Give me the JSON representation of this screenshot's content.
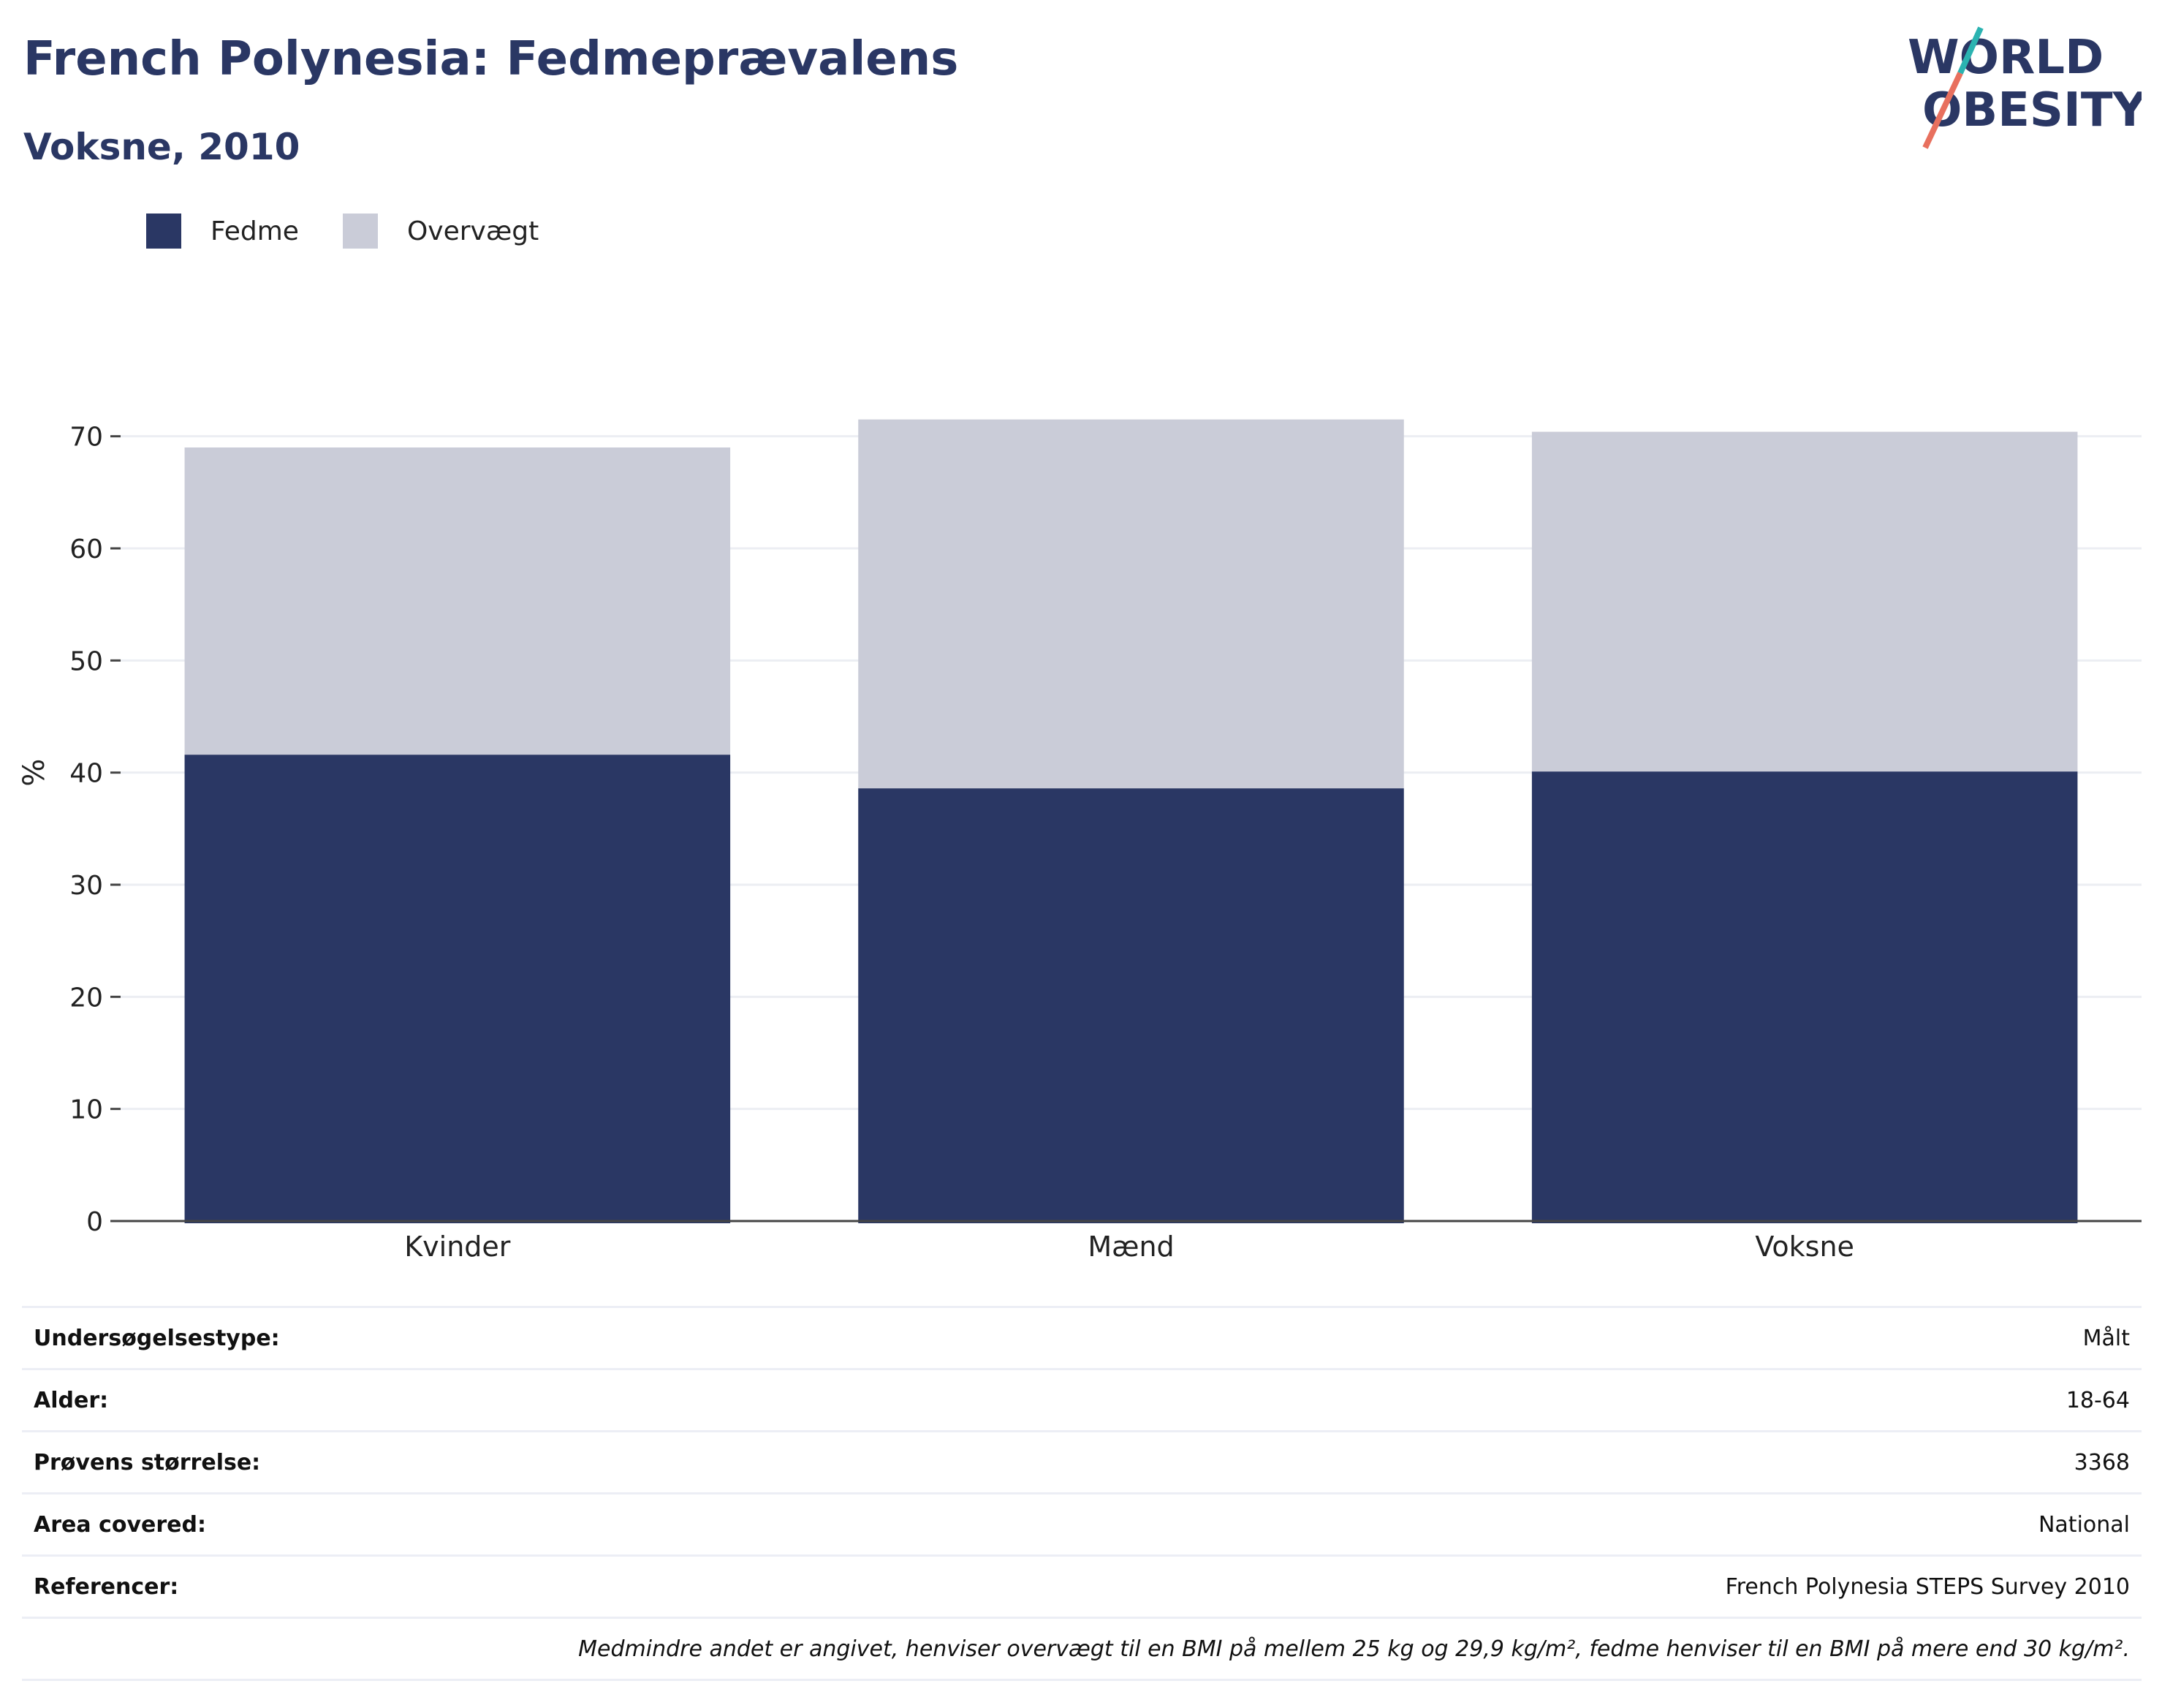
{
  "header": {
    "title": "French Polynesia: Fedmeprævalens",
    "subtitle": "Voksne, 2010",
    "logo_line1": "WORLD",
    "logo_line2": "OBESITY"
  },
  "legend": [
    {
      "label": "Fedme",
      "color": "#2a3764"
    },
    {
      "label": "Overvægt",
      "color": "#caccd8"
    }
  ],
  "chart_data": {
    "type": "bar",
    "stacked": true,
    "categories": [
      "Kvinder",
      "Mænd",
      "Voksne"
    ],
    "series": [
      {
        "name": "Fedme",
        "color": "#2a3764",
        "values": [
          41.6,
          38.6,
          40.1
        ]
      },
      {
        "name": "Overvægt",
        "color": "#caccd8",
        "values": [
          27.4,
          32.9,
          30.3
        ]
      }
    ],
    "ylabel": "%",
    "xlabel": "",
    "ylim": [
      0,
      75
    ],
    "yticks": [
      0,
      10,
      20,
      30,
      40,
      50,
      60,
      70
    ],
    "grid": true,
    "legend_position": "top-left"
  },
  "info": {
    "rows": [
      {
        "label": "Undersøgelsestype:",
        "value": "Målt"
      },
      {
        "label": "Alder:",
        "value": "18-64"
      },
      {
        "label": "Prøvens størrelse:",
        "value": "3368"
      },
      {
        "label": "Area covered:",
        "value": "National"
      },
      {
        "label": "Referencer:",
        "value": "French Polynesia STEPS Survey 2010"
      }
    ],
    "note": "Medmindre andet er angivet, henviser overvægt til en BMI på mellem 25 kg og 29,9 kg/m², fedme henviser til en BMI på mere end 30 kg/m²."
  }
}
